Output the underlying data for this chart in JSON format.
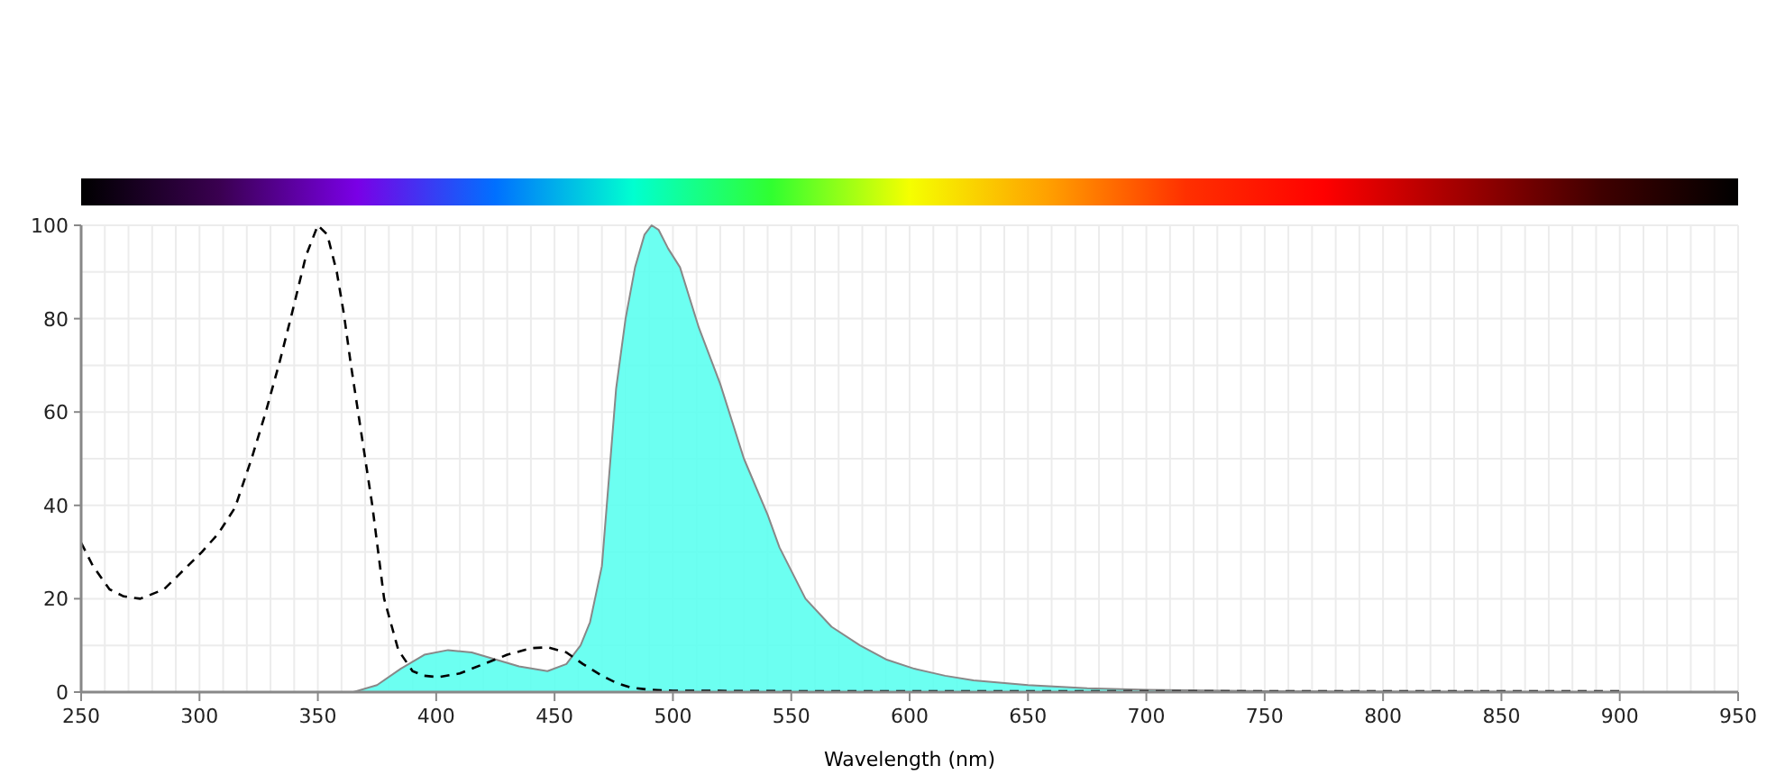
{
  "chart_data": {
    "type": "line",
    "xlabel": "Wavelength (nm)",
    "xlim": [
      250,
      950
    ],
    "xticks": [
      250,
      300,
      350,
      400,
      450,
      500,
      550,
      600,
      650,
      700,
      750,
      800,
      850,
      900,
      950
    ],
    "ylim": [
      0,
      100
    ],
    "yticks": [
      0,
      20,
      40,
      60,
      80,
      100
    ],
    "grid": true,
    "series": [
      {
        "color": "#000000",
        "line_style": "dashed",
        "x": [
          250,
          255,
          262,
          268,
          275,
          285,
          295,
          301,
          308,
          315,
          322,
          328,
          334,
          339,
          345,
          350,
          354,
          358,
          361,
          364,
          367,
          370,
          373,
          378,
          384,
          390,
          395,
          401,
          410,
          420,
          430,
          440,
          447,
          455,
          462,
          470,
          476,
          482,
          490,
          500,
          550,
          700,
          900
        ],
        "values": [
          32,
          27,
          22,
          20.5,
          20,
          22,
          27,
          30,
          34,
          39.5,
          50,
          60,
          71,
          81,
          93.5,
          100,
          98,
          90,
          81,
          70,
          60,
          50,
          40,
          20,
          9,
          4.5,
          3.5,
          3.2,
          4,
          6,
          8,
          9.4,
          9.6,
          8.5,
          6,
          3.5,
          2,
          1,
          0.5,
          0.3,
          0.2,
          0.2,
          0.2
        ]
      },
      {
        "type": "area",
        "color": "#5cfff0",
        "x": [
          365,
          375,
          385,
          395,
          405,
          415,
          425,
          435,
          447,
          455,
          461,
          465,
          470,
          476,
          480,
          484,
          488,
          491,
          494,
          498,
          503,
          511,
          520,
          530,
          540,
          545,
          556,
          567,
          579,
          590,
          602,
          615,
          627,
          650,
          675,
          700,
          750,
          800,
          900
        ],
        "values": [
          0,
          1.5,
          5,
          8,
          9,
          8.5,
          7,
          5.5,
          4.5,
          6,
          10,
          15,
          27,
          65,
          80,
          91,
          98,
          100,
          99,
          95,
          91,
          78,
          66,
          50,
          38,
          31,
          20,
          14,
          10,
          7,
          5,
          3.5,
          2.5,
          1.5,
          0.8,
          0.5,
          0.2,
          0.1,
          0
        ]
      }
    ]
  }
}
